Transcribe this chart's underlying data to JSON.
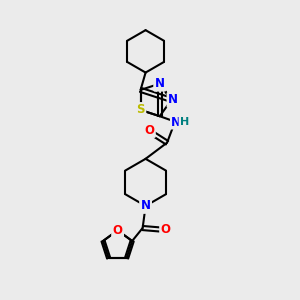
{
  "bg_color": "#ebebeb",
  "fig_width": 3.0,
  "fig_height": 3.0,
  "dpi": 100,
  "bond_color": "#000000",
  "bond_width": 1.5,
  "atom_colors": {
    "N": "#0000ff",
    "O": "#ff0000",
    "S": "#bbbb00",
    "H_label": "#008080",
    "C": "#000000"
  },
  "font_size_atom": 8.5
}
